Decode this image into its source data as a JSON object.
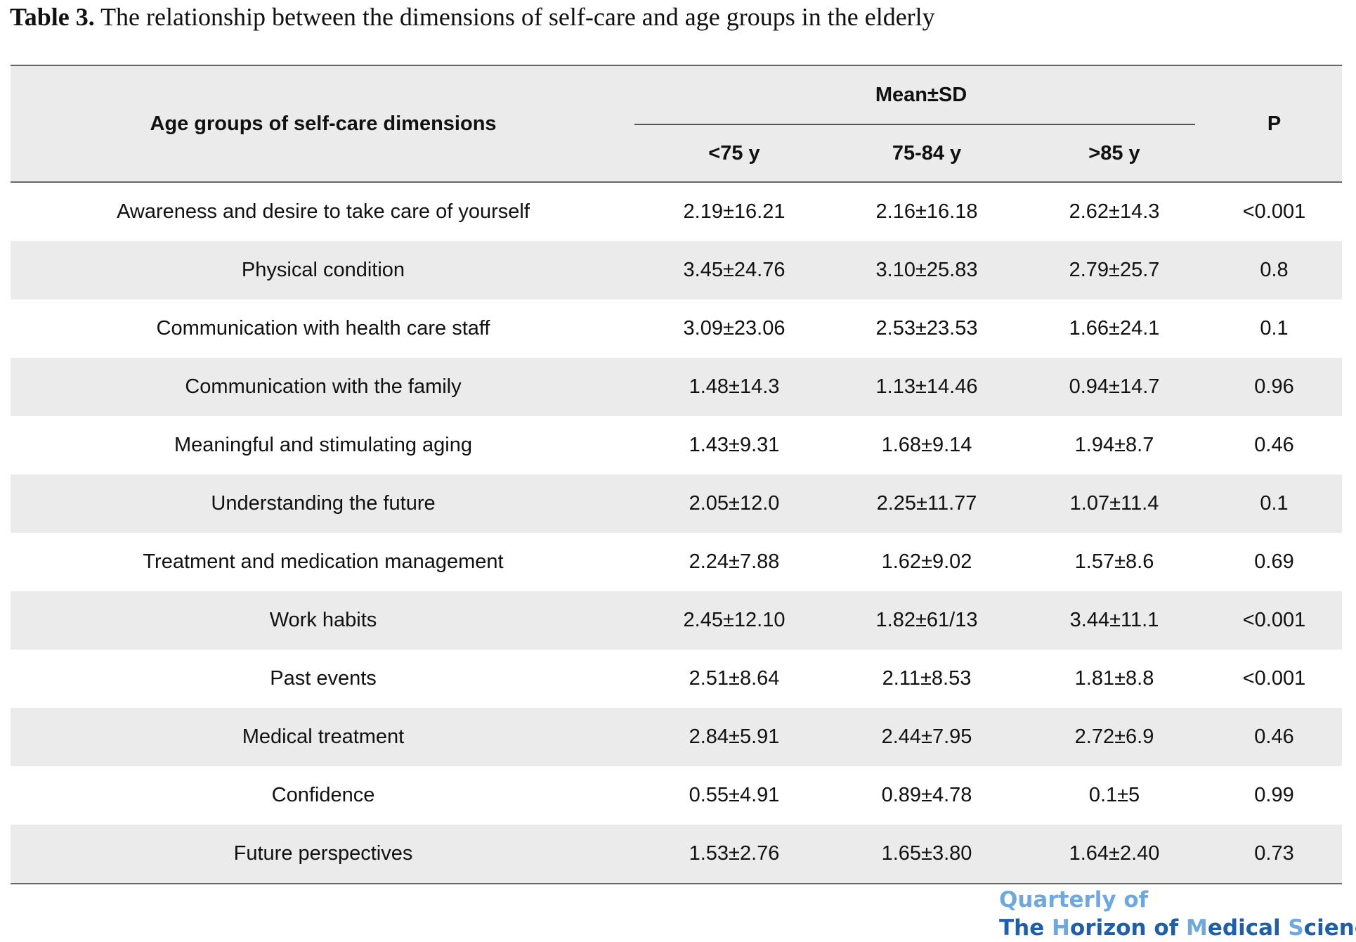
{
  "caption": {
    "label": "Table 3.",
    "title": " The relationship between the dimensions of self-care and age groups in the elderly"
  },
  "table": {
    "header": {
      "dimension": "Age groups of self-care dimensions",
      "group_header": "Mean±SD",
      "columns": [
        "<75 y",
        "75-84 y",
        ">85 y"
      ],
      "p": "P"
    },
    "rows": [
      {
        "dimension": "Awareness and desire to take care of yourself",
        "c1": "2.19±16.21",
        "c2": "2.16±16.18",
        "c3": "2.62±14.3",
        "p": "<0.001"
      },
      {
        "dimension": "Physical condition",
        "c1": "3.45±24.76",
        "c2": "3.10±25.83",
        "c3": "2.79±25.7",
        "p": "0.8"
      },
      {
        "dimension": "Communication with health care staff",
        "c1": "3.09±23.06",
        "c2": "2.53±23.53",
        "c3": "1.66±24.1",
        "p": "0.1"
      },
      {
        "dimension": "Communication with the family",
        "c1": "1.48±14.3",
        "c2": "1.13±14.46",
        "c3": "0.94±14.7",
        "p": "0.96"
      },
      {
        "dimension": "Meaningful and stimulating aging",
        "c1": "1.43±9.31",
        "c2": "1.68±9.14",
        "c3": "1.94±8.7",
        "p": "0.46"
      },
      {
        "dimension": "Understanding the future",
        "c1": "2.05±12.0",
        "c2": "2.25±11.77",
        "c3": "1.07±11.4",
        "p": "0.1"
      },
      {
        "dimension": "Treatment and medication management",
        "c1": "2.24±7.88",
        "c2": "1.62±9.02",
        "c3": "1.57±8.6",
        "p": "0.69"
      },
      {
        "dimension": "Work habits",
        "c1": "2.45±12.10",
        "c2": "1.82±61/13",
        "c3": "3.44±11.1",
        "p": "<0.001"
      },
      {
        "dimension": "Past events",
        "c1": "2.51±8.64",
        "c2": "2.11±8.53",
        "c3": "1.81±8.8",
        "p": "<0.001"
      },
      {
        "dimension": "Medical treatment",
        "c1": "2.84±5.91",
        "c2": "2.44±7.95",
        "c3": "2.72±6.9",
        "p": "0.46"
      },
      {
        "dimension": "Confidence",
        "c1": "0.55±4.91",
        "c2": "0.89±4.78",
        "c3": "0.1±5",
        "p": "0.99"
      },
      {
        "dimension": "Future perspectives",
        "c1": "1.53±2.76",
        "c2": "1.65±3.80",
        "c3": "1.64±2.40",
        "p": "0.73"
      }
    ]
  },
  "logo": {
    "line1": "Quarterly of",
    "line2_parts": [
      "The ",
      "H",
      "orizon of ",
      "M",
      "edical ",
      "S",
      "ciences"
    ]
  },
  "colors": {
    "header_bg": "#ebebeb",
    "stripe_bg": "#ebebeb",
    "rule": "#666666",
    "logo_light": "#6fa8dc",
    "logo_dark": "#1f5fa8"
  }
}
